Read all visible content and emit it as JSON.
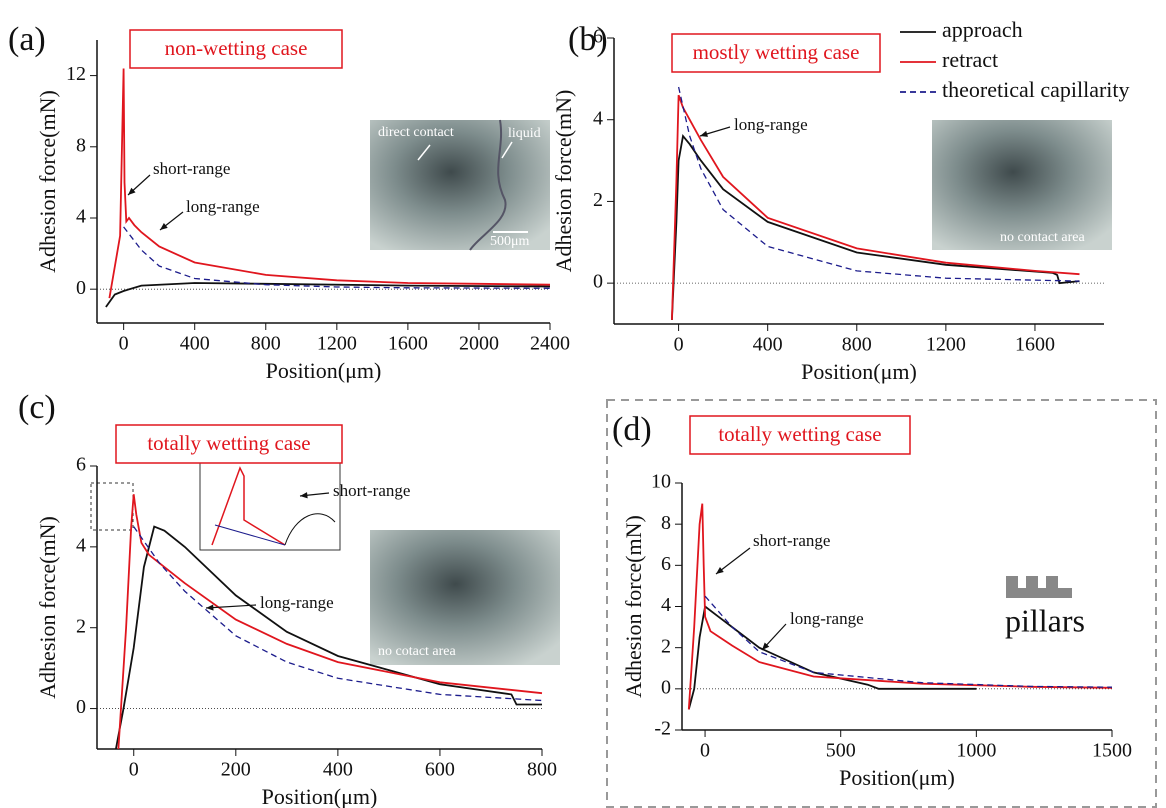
{
  "chart_data": [
    {
      "type": "line",
      "panel": "(a)",
      "title": "non-wetting case",
      "xlabel": "Position(μm)",
      "ylabel": "Adhesion force(mN)",
      "xlim": [
        -150,
        2400
      ],
      "ylim": [
        -1.9,
        14
      ],
      "xticks": [
        0,
        400,
        800,
        1200,
        1600,
        2000,
        2400
      ],
      "yticks": [
        0,
        4,
        8,
        12
      ],
      "series": [
        {
          "color": "#111111",
          "style": "solid",
          "x": [
            -100,
            -50,
            0,
            100,
            400,
            800,
            1600,
            2400
          ],
          "values": [
            -1,
            -0.3,
            -0.1,
            0.2,
            0.35,
            0.3,
            0.2,
            0.15
          ]
        },
        {
          "color": "#e0161e",
          "style": "solid",
          "x": [
            -80,
            -20,
            0,
            5,
            15,
            30,
            60,
            100,
            200,
            400,
            800,
            1200,
            1600,
            2000,
            2400
          ],
          "values": [
            -0.5,
            3,
            12.4,
            6,
            3.8,
            4.0,
            3.6,
            3.2,
            2.4,
            1.5,
            0.8,
            0.5,
            0.35,
            0.3,
            0.25
          ]
        },
        {
          "color": "#1c1c8c",
          "style": "dashed",
          "x": [
            0,
            100,
            200,
            400,
            800,
            1200,
            1600,
            2400
          ],
          "values": [
            3.5,
            2.2,
            1.3,
            0.6,
            0.25,
            0.12,
            0.08,
            0.05
          ]
        }
      ],
      "annotations": [
        "short-range",
        "long-range"
      ],
      "photo_labels": [
        "direct contact",
        "liquid",
        "500μm"
      ]
    },
    {
      "type": "line",
      "panel": "(b)",
      "title": "mostly wetting case",
      "xlabel": "Position(μm)",
      "ylabel": "Adhesion force(mN)",
      "xlim": [
        -290,
        1910
      ],
      "ylim": [
        -1,
        6
      ],
      "xticks": [
        0,
        400,
        800,
        1200,
        1600
      ],
      "yticks": [
        0,
        2,
        4,
        6
      ],
      "series": [
        {
          "name": "approach",
          "color": "#111111",
          "style": "solid",
          "x": [
            -30,
            -10,
            0,
            20,
            50,
            100,
            200,
            400,
            800,
            1200,
            1680,
            1700,
            1710,
            1800
          ],
          "values": [
            -0.9,
            1.5,
            3.0,
            3.6,
            3.4,
            3.0,
            2.3,
            1.5,
            0.75,
            0.45,
            0.25,
            0.2,
            0.0,
            0.05
          ]
        },
        {
          "name": "retract",
          "color": "#e0161e",
          "style": "solid",
          "x": [
            -30,
            -10,
            0,
            20,
            50,
            100,
            200,
            400,
            800,
            1200,
            1600,
            1800
          ],
          "values": [
            -0.9,
            2.5,
            4.6,
            4.3,
            4.0,
            3.5,
            2.6,
            1.6,
            0.85,
            0.5,
            0.3,
            0.22
          ]
        },
        {
          "name": "theoretical capillarity",
          "color": "#1c1c8c",
          "style": "dashed",
          "x": [
            0,
            50,
            100,
            200,
            400,
            800,
            1200,
            1800
          ],
          "values": [
            4.8,
            3.6,
            2.8,
            1.8,
            0.9,
            0.3,
            0.12,
            0.05
          ]
        }
      ],
      "annotations": [
        "long-range"
      ],
      "photo_labels": [
        "no contact area"
      ]
    },
    {
      "type": "line",
      "panel": "(c)",
      "title": "totally wetting case",
      "xlabel": "Position(μm)",
      "ylabel": "Adhesion force(mN)",
      "xlim": [
        -72,
        800
      ],
      "ylim": [
        -1,
        6
      ],
      "xticks": [
        0,
        200,
        400,
        600,
        800
      ],
      "yticks": [
        0,
        2,
        4,
        6
      ],
      "series": [
        {
          "color": "#111111",
          "style": "solid",
          "x": [
            -35,
            -20,
            0,
            20,
            40,
            60,
            100,
            200,
            300,
            400,
            600,
            740,
            750,
            800
          ],
          "values": [
            -1,
            0,
            1.5,
            3.5,
            4.5,
            4.4,
            4.0,
            2.8,
            1.9,
            1.3,
            0.6,
            0.35,
            0.1,
            0.1
          ]
        },
        {
          "color": "#e0161e",
          "style": "solid",
          "x": [
            -30,
            -15,
            -5,
            0,
            5,
            15,
            30,
            60,
            100,
            200,
            300,
            400,
            600,
            800
          ],
          "values": [
            -1,
            2,
            4.5,
            5.3,
            4.8,
            4.1,
            3.8,
            3.5,
            3.1,
            2.2,
            1.6,
            1.15,
            0.65,
            0.38
          ]
        },
        {
          "color": "#1c1c8c",
          "style": "dashed",
          "x": [
            0,
            50,
            100,
            200,
            300,
            400,
            600,
            800
          ],
          "values": [
            4.5,
            3.6,
            2.9,
            1.8,
            1.15,
            0.75,
            0.35,
            0.2
          ]
        }
      ],
      "annotations": [
        "short-range",
        "long-range"
      ],
      "photo_labels": [
        "no cotact area"
      ]
    },
    {
      "type": "line",
      "panel": "(d)",
      "title": "totally wetting case",
      "xlabel": "Position(μm)",
      "ylabel": "Adhesion force(mN)",
      "xlim": [
        -85,
        1500
      ],
      "ylim": [
        -2,
        10
      ],
      "xticks": [
        0,
        500,
        1000,
        1500
      ],
      "yticks": [
        -2,
        0,
        2,
        4,
        6,
        8,
        10
      ],
      "series": [
        {
          "color": "#111111",
          "style": "solid",
          "x": [
            -60,
            -40,
            -20,
            0,
            50,
            100,
            200,
            400,
            600,
            640,
            1000
          ],
          "values": [
            -1,
            0,
            2.5,
            4.0,
            3.5,
            3.0,
            2.0,
            0.8,
            0.2,
            0.0,
            0.0
          ]
        },
        {
          "color": "#e0161e",
          "style": "solid",
          "x": [
            -60,
            -40,
            -20,
            -10,
            -5,
            0,
            20,
            100,
            200,
            400,
            800,
            1200,
            1500
          ],
          "values": [
            -1,
            3,
            8,
            9,
            6,
            3.5,
            2.8,
            2.1,
            1.3,
            0.6,
            0.25,
            0.1,
            0.05
          ]
        },
        {
          "color": "#1c1c8c",
          "style": "dashed",
          "x": [
            0,
            100,
            200,
            400,
            800,
            1200,
            1500
          ],
          "values": [
            4.5,
            3.0,
            1.8,
            0.8,
            0.3,
            0.12,
            0.08
          ]
        }
      ],
      "annotations": [
        "short-range",
        "long-range"
      ],
      "photo_labels": [
        "pillars"
      ]
    }
  ]
}
